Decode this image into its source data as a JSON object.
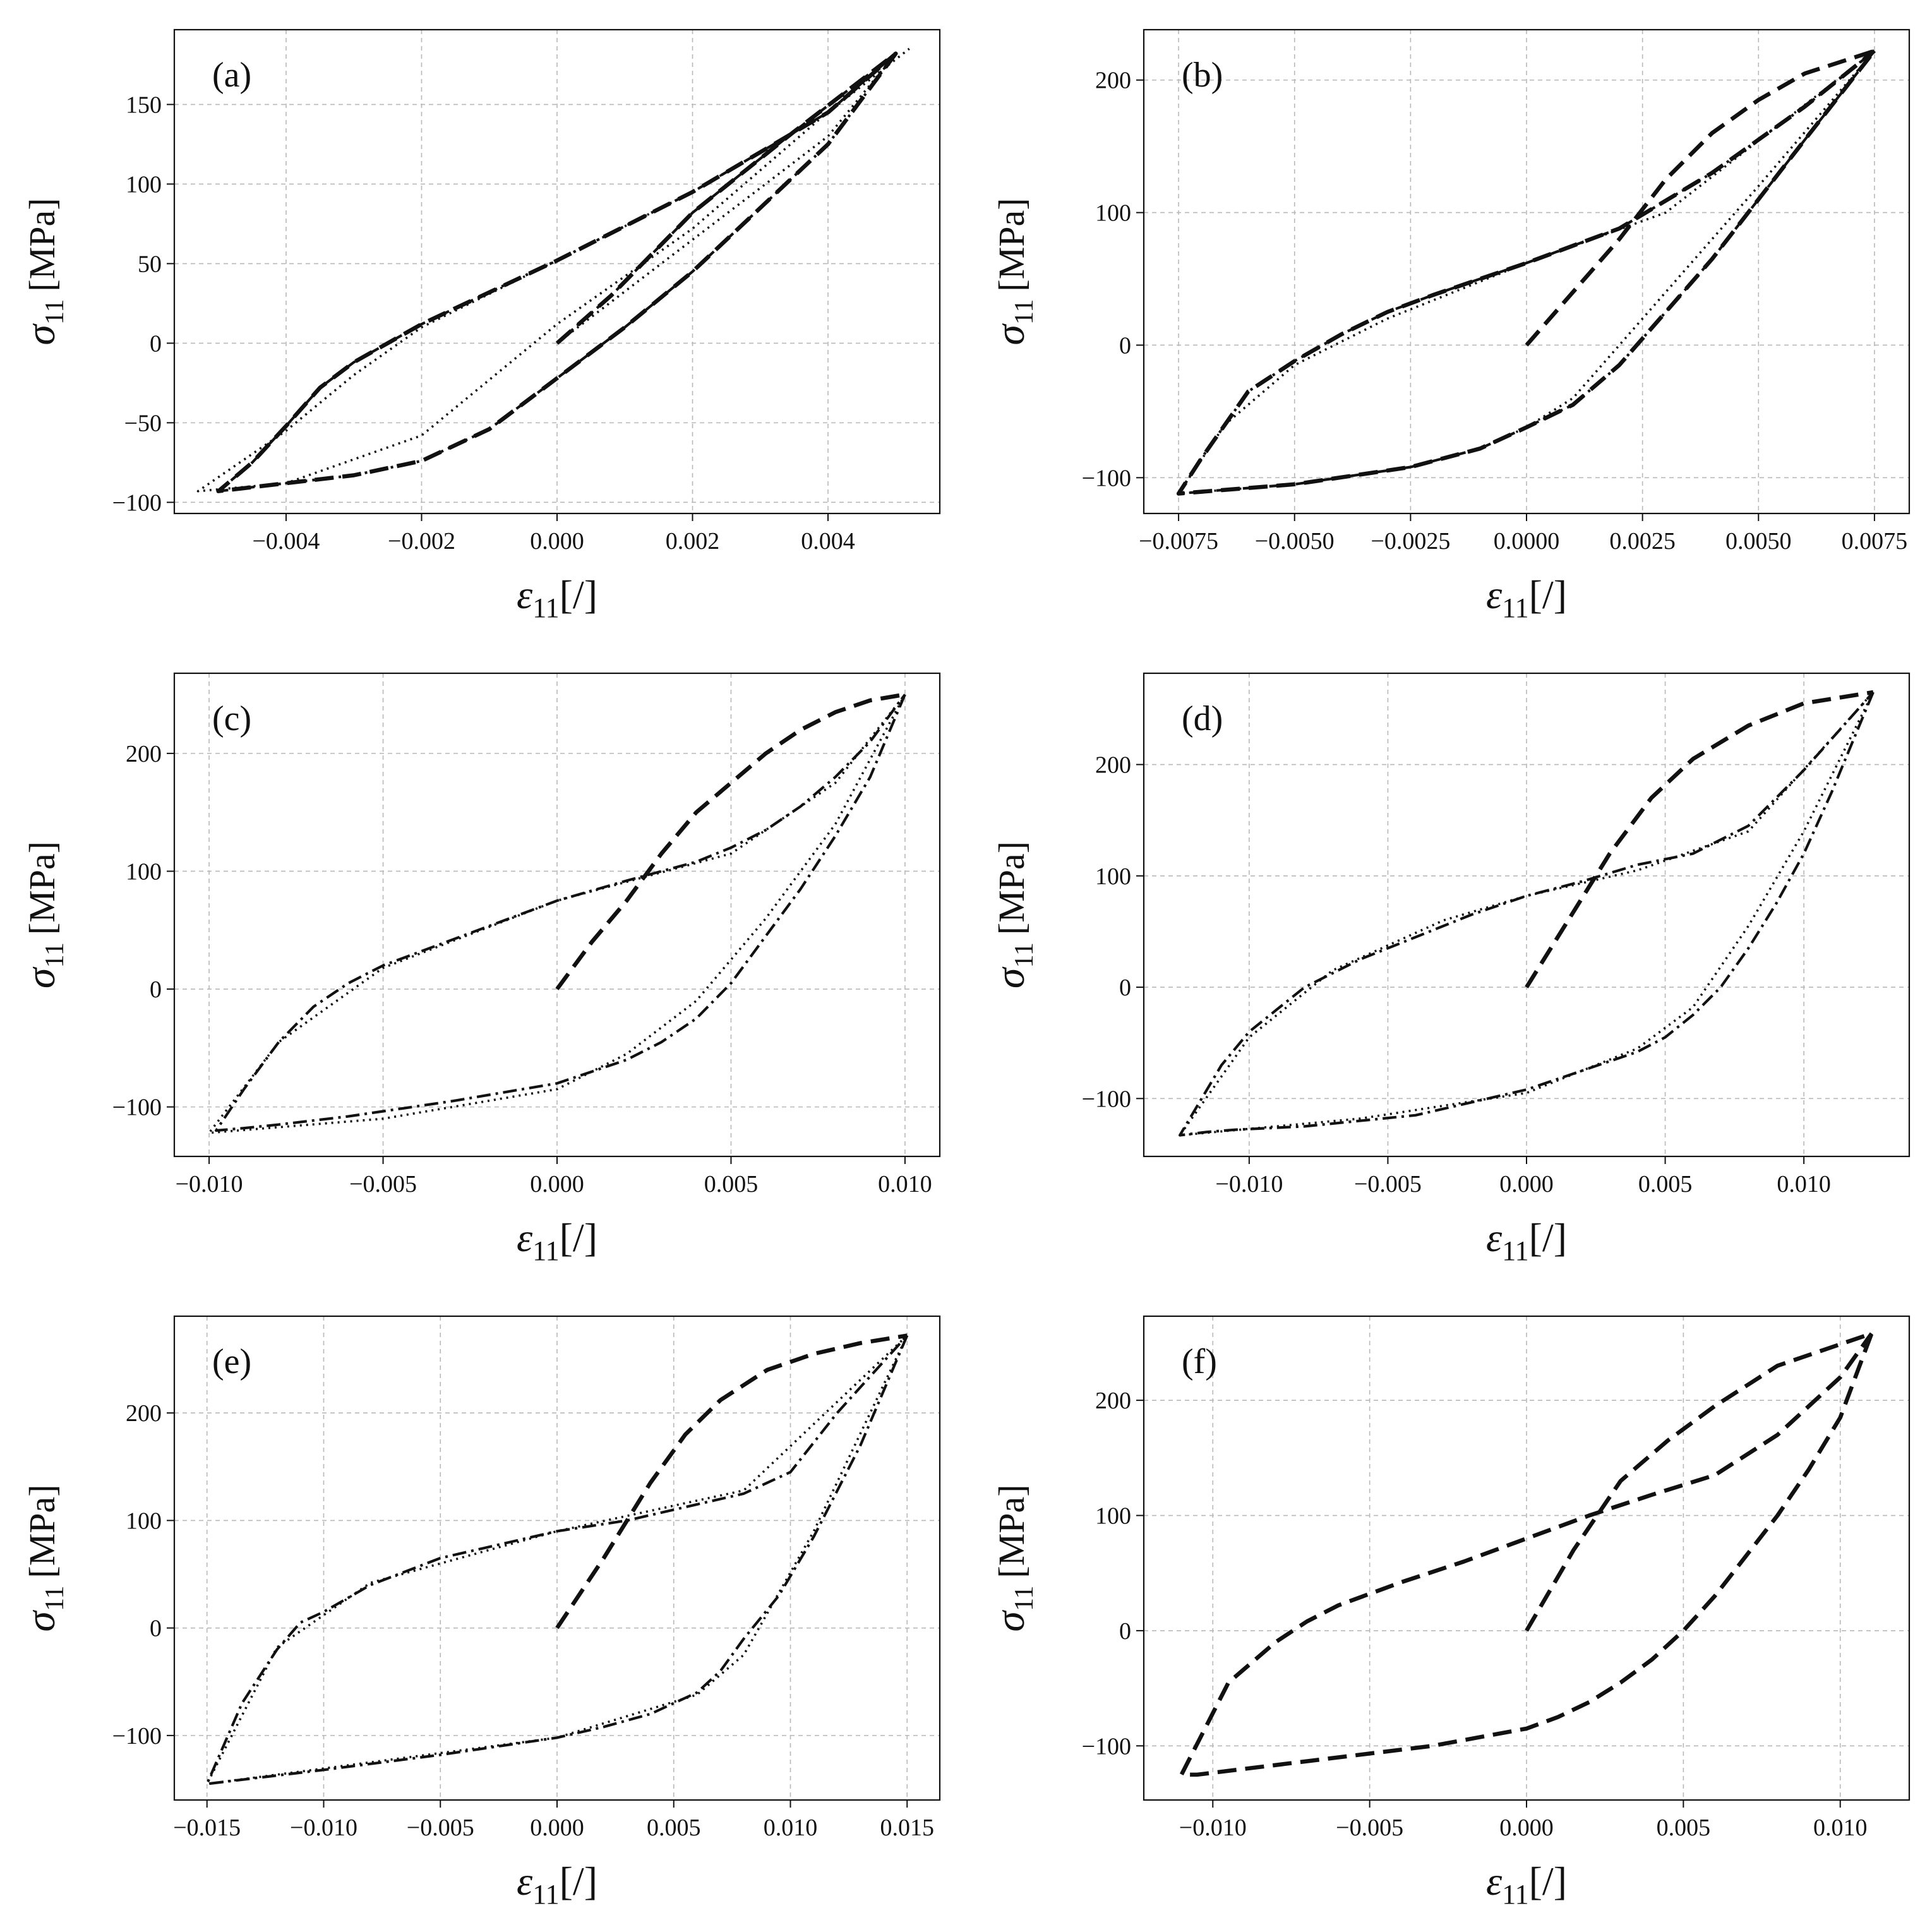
{
  "figure": {
    "x_axis_symbol": "ε",
    "x_axis_subscript": "11",
    "x_axis_unit": "[/]",
    "y_axis_symbol": "σ",
    "y_axis_subscript": "11",
    "y_axis_unit": "[MPa]"
  },
  "chart_data": [
    {
      "type": "line",
      "label": "(a)",
      "xlabel": "ε11[/]",
      "ylabel": "σ11 [MPa]",
      "xlim": [
        -0.00565,
        0.00565
      ],
      "ylim": [
        -107,
        197
      ],
      "xticks": [
        -0.004,
        -0.002,
        0.0,
        0.002,
        0.004
      ],
      "xtick_labels": [
        "−0.004",
        "−0.002",
        "0.000",
        "0.002",
        "0.004"
      ],
      "yticks": [
        -100,
        -50,
        0,
        50,
        100,
        150
      ],
      "ytick_labels": [
        "−100",
        "−50",
        "0",
        "50",
        "100",
        "150"
      ],
      "grid": true,
      "series": [
        {
          "name": "dashed",
          "style": "dashed",
          "x": [
            0,
            0.0008,
            0.002,
            0.0035,
            0.005,
            0.004,
            0.002,
            0.001,
            0,
            -0.001,
            -0.002,
            -0.003,
            -0.004,
            -0.005,
            -0.0045,
            -0.004,
            -0.0035,
            -0.003,
            -0.002,
            0,
            0.002,
            0.004,
            0.005
          ],
          "y": [
            0,
            30,
            82,
            133,
            182,
            125,
            45,
            10,
            -22,
            -54,
            -74,
            -83,
            -88,
            -93,
            -75,
            -52,
            -28,
            -12,
            12,
            52,
            95,
            145,
            182
          ]
        },
        {
          "name": "dash-dot",
          "style": "dashdot",
          "x": [
            0,
            0.0008,
            0.002,
            0.0035,
            0.005,
            0.004,
            0.002,
            0.001,
            0,
            -0.001,
            -0.002,
            -0.003,
            -0.004,
            -0.005,
            -0.0045,
            -0.004,
            -0.0035,
            -0.003,
            -0.002,
            0,
            0.002,
            0.004,
            0.005
          ],
          "y": [
            0,
            30,
            82,
            133,
            182,
            125,
            45,
            10,
            -22,
            -54,
            -74,
            -83,
            -88,
            -93,
            -75,
            -52,
            -28,
            -12,
            12,
            52,
            95,
            145,
            182
          ]
        },
        {
          "name": "dotted",
          "style": "dotted",
          "x": [
            0,
            0.002,
            0.004,
            0.005,
            0.002,
            0,
            -0.002,
            -0.004,
            -0.0053,
            -0.004,
            -0.003,
            -0.002,
            0,
            0.002,
            0.004,
            0.0052
          ],
          "y": [
            0,
            65,
            130,
            182,
            72,
            12,
            -58,
            -88,
            -93,
            -55,
            -20,
            10,
            52,
            95,
            145,
            185
          ]
        }
      ]
    },
    {
      "type": "line",
      "label": "(b)",
      "xlabel": "ε11[/]",
      "ylabel": "σ11 [MPa]",
      "xlim": [
        -0.00825,
        0.00825
      ],
      "ylim": [
        -127,
        238
      ],
      "xticks": [
        -0.0075,
        -0.005,
        -0.0025,
        0.0,
        0.0025,
        0.005,
        0.0075
      ],
      "xtick_labels": [
        "−0.0075",
        "−0.0050",
        "−0.0025",
        "0.0000",
        "0.0025",
        "0.0050",
        "0.0075"
      ],
      "yticks": [
        -100,
        0,
        100,
        200
      ],
      "ytick_labels": [
        "−100",
        "0",
        "100",
        "200"
      ],
      "grid": true,
      "series": [
        {
          "name": "dashed",
          "style": "dashed",
          "x": [
            0,
            0.001,
            0.002,
            0.003,
            0.004,
            0.005,
            0.006,
            0.0075,
            0.006,
            0.005,
            0.004,
            0.003,
            0.002,
            0.001,
            0,
            -0.001,
            -0.0025,
            -0.005,
            -0.0075,
            -0.007,
            -0.006,
            -0.005,
            -0.004,
            -0.003,
            -0.002,
            0,
            0.002,
            0.004,
            0.006,
            0.0075
          ],
          "y": [
            0,
            40,
            80,
            125,
            160,
            185,
            205,
            222,
            155,
            110,
            65,
            25,
            -15,
            -45,
            -62,
            -78,
            -92,
            -105,
            -112,
            -85,
            -35,
            -12,
            8,
            25,
            38,
            62,
            88,
            130,
            180,
            222
          ]
        },
        {
          "name": "dash-dot",
          "style": "dashdot",
          "x": [
            0.0075,
            0.006,
            0.005,
            0.004,
            0.003,
            0.002,
            0.001,
            0,
            -0.001,
            -0.0025,
            -0.005,
            -0.0075,
            -0.007,
            -0.006,
            -0.005,
            -0.004,
            -0.003,
            -0.002,
            0,
            0.002,
            0.004,
            0.006,
            0.0075
          ],
          "y": [
            222,
            155,
            110,
            65,
            25,
            -15,
            -45,
            -62,
            -78,
            -92,
            -105,
            -112,
            -85,
            -35,
            -12,
            8,
            25,
            38,
            62,
            88,
            130,
            180,
            222
          ]
        },
        {
          "name": "dotted",
          "style": "dotted",
          "x": [
            0.0075,
            0.005,
            0.003,
            0.001,
            0,
            -0.001,
            -0.0025,
            -0.005,
            -0.0075,
            -0.0065,
            -0.005,
            -0.003,
            0,
            0.003,
            0.0075
          ],
          "y": [
            222,
            120,
            40,
            -40,
            -62,
            -78,
            -92,
            -105,
            -112,
            -60,
            -15,
            20,
            62,
            100,
            222
          ]
        }
      ]
    },
    {
      "type": "line",
      "label": "(c)",
      "xlabel": "ε11[/]",
      "ylabel": "σ11 [MPa]",
      "xlim": [
        -0.011,
        0.011
      ],
      "ylim": [
        -142,
        268
      ],
      "xticks": [
        -0.01,
        -0.005,
        0.0,
        0.005,
        0.01
      ],
      "xtick_labels": [
        "−0.010",
        "−0.005",
        "0.000",
        "0.005",
        "0.010"
      ],
      "yticks": [
        -100,
        0,
        100,
        200
      ],
      "ytick_labels": [
        "−100",
        "0",
        "100",
        "200"
      ],
      "grid": true,
      "series": [
        {
          "name": "dashed",
          "style": "dashed",
          "x": [
            0,
            0.001,
            0.002,
            0.003,
            0.004,
            0.005,
            0.006,
            0.007,
            0.008,
            0.009,
            0.01
          ],
          "y": [
            0,
            40,
            75,
            115,
            150,
            175,
            200,
            220,
            235,
            245,
            250
          ]
        },
        {
          "name": "dash-dot",
          "style": "dashdot",
          "x": [
            0.01,
            0.009,
            0.008,
            0.007,
            0.006,
            0.005,
            0.004,
            0.003,
            0.002,
            0.001,
            0,
            -0.003,
            -0.006,
            -0.008,
            -0.009,
            -0.0098,
            -0.009,
            -0.008,
            -0.007,
            -0.006,
            -0.005,
            -0.003,
            0,
            0.002,
            0.004,
            0.005,
            0.006,
            0.007,
            0.008,
            0.009,
            0.01
          ],
          "y": [
            250,
            180,
            130,
            85,
            45,
            5,
            -25,
            -45,
            -60,
            -70,
            -80,
            -95,
            -108,
            -115,
            -118,
            -120,
            -85,
            -45,
            -15,
            5,
            20,
            42,
            75,
            92,
            108,
            120,
            135,
            155,
            180,
            210,
            250
          ]
        },
        {
          "name": "dotted",
          "style": "dotted",
          "x": [
            0.01,
            0.008,
            0.006,
            0.004,
            0.002,
            0,
            -0.005,
            -0.01,
            -0.008,
            -0.005,
            0,
            0.005,
            0.008,
            0.01
          ],
          "y": [
            250,
            140,
            60,
            -10,
            -55,
            -85,
            -110,
            -122,
            -45,
            18,
            75,
            115,
            175,
            250
          ]
        }
      ]
    },
    {
      "type": "line",
      "label": "(d)",
      "xlabel": "ε11[/]",
      "ylabel": "σ11 [MPa]",
      "xlim": [
        -0.0138,
        0.0138
      ],
      "ylim": [
        -152,
        282
      ],
      "xticks": [
        -0.01,
        -0.005,
        0.0,
        0.005,
        0.01
      ],
      "xtick_labels": [
        "−0.010",
        "−0.005",
        "0.000",
        "0.005",
        "0.010"
      ],
      "yticks": [
        -100,
        0,
        100,
        200
      ],
      "ytick_labels": [
        "−100",
        "0",
        "100",
        "200"
      ],
      "grid": true,
      "series": [
        {
          "name": "dashed",
          "style": "dashed",
          "x": [
            0,
            0.0015,
            0.003,
            0.0045,
            0.006,
            0.008,
            0.01,
            0.0125
          ],
          "y": [
            0,
            60,
            120,
            170,
            205,
            235,
            255,
            265
          ]
        },
        {
          "name": "dash-dot",
          "style": "dashdot",
          "x": [
            0.0125,
            0.011,
            0.01,
            0.009,
            0.008,
            0.007,
            0.006,
            0.005,
            0.004,
            0.002,
            0,
            -0.004,
            -0.008,
            -0.0105,
            -0.0115,
            -0.0125,
            -0.011,
            -0.01,
            -0.009,
            -0.008,
            -0.006,
            -0.004,
            -0.002,
            0,
            0.002,
            0.004,
            0.006,
            0.008,
            0.01,
            0.0125
          ],
          "y": [
            265,
            175,
            120,
            75,
            35,
            0,
            -25,
            -45,
            -58,
            -75,
            -92,
            -115,
            -125,
            -128,
            -130,
            -133,
            -70,
            -40,
            -20,
            0,
            25,
            45,
            65,
            82,
            95,
            110,
            120,
            145,
            195,
            265
          ]
        },
        {
          "name": "dotted",
          "style": "dotted",
          "x": [
            0.0125,
            0.01,
            0.008,
            0.006,
            0.004,
            0,
            -0.006,
            -0.0125,
            -0.01,
            -0.007,
            -0.003,
            0,
            0.004,
            0.008,
            0.0125
          ],
          "y": [
            265,
            140,
            55,
            -18,
            -55,
            -95,
            -118,
            -133,
            -45,
            15,
            60,
            82,
            105,
            140,
            265
          ]
        }
      ]
    },
    {
      "type": "line",
      "label": "(e)",
      "xlabel": "ε11[/]",
      "ylabel": "σ11 [MPa]",
      "xlim": [
        -0.0164,
        0.0164
      ],
      "ylim": [
        -160,
        290
      ],
      "xticks": [
        -0.015,
        -0.01,
        -0.005,
        0.0,
        0.005,
        0.01,
        0.015
      ],
      "xtick_labels": [
        "−0.015",
        "−0.010",
        "−0.005",
        "0.000",
        "0.005",
        "0.010",
        "0.015"
      ],
      "yticks": [
        -100,
        0,
        100,
        200
      ],
      "ytick_labels": [
        "−100",
        "0",
        "100",
        "200"
      ],
      "grid": true,
      "series": [
        {
          "name": "dashed",
          "style": "dashed",
          "x": [
            0,
            0.002,
            0.004,
            0.0055,
            0.007,
            0.009,
            0.011,
            0.013,
            0.015
          ],
          "y": [
            0,
            65,
            135,
            180,
            212,
            240,
            255,
            265,
            272
          ]
        },
        {
          "name": "dash-dot",
          "style": "dashdot",
          "x": [
            0.015,
            0.013,
            0.011,
            0.0095,
            0.008,
            0.007,
            0.006,
            0.004,
            0.002,
            0,
            -0.005,
            -0.01,
            -0.015,
            -0.0135,
            -0.012,
            -0.011,
            -0.01,
            -0.008,
            -0.005,
            -0.002,
            0,
            0.003,
            0.006,
            0.008,
            0.01,
            0.012,
            0.015
          ],
          "y": [
            272,
            170,
            85,
            30,
            -10,
            -40,
            -60,
            -80,
            -92,
            -102,
            -118,
            -132,
            -145,
            -70,
            -20,
            5,
            15,
            40,
            65,
            80,
            90,
            100,
            115,
            125,
            145,
            200,
            272
          ]
        },
        {
          "name": "dotted",
          "style": "dotted",
          "x": [
            0.015,
            0.011,
            0.008,
            0.006,
            0,
            -0.015,
            -0.012,
            -0.008,
            0,
            0.008,
            0.015
          ],
          "y": [
            272,
            90,
            -25,
            -62,
            -102,
            -145,
            -18,
            42,
            90,
            128,
            272
          ]
        }
      ]
    },
    {
      "type": "line",
      "label": "(f)",
      "xlabel": "ε11[/]",
      "ylabel": "σ11 [MPa]",
      "xlim": [
        -0.0122,
        0.0122
      ],
      "ylim": [
        -147,
        273
      ],
      "xticks": [
        -0.01,
        -0.005,
        0.0,
        0.005,
        0.01
      ],
      "xtick_labels": [
        "−0.010",
        "−0.005",
        "0.000",
        "0.005",
        "0.010"
      ],
      "yticks": [
        -100,
        0,
        100,
        200
      ],
      "ytick_labels": [
        "−100",
        "0",
        "100",
        "200"
      ],
      "grid": true,
      "series": [
        {
          "name": "dashed",
          "style": "dashed",
          "x": [
            0,
            0.0015,
            0.003,
            0.0045,
            0.006,
            0.008,
            0.011,
            0.01,
            0.009,
            0.008,
            0.007,
            0.006,
            0.005,
            0.004,
            0.003,
            0.002,
            0.001,
            0,
            -0.003,
            -0.006,
            -0.0105,
            -0.011,
            -0.0095,
            -0.008,
            -0.007,
            -0.006,
            -0.004,
            -0.002,
            0,
            0.002,
            0.004,
            0.006,
            0.008,
            0.01,
            0.011
          ],
          "y": [
            0,
            70,
            130,
            165,
            195,
            230,
            258,
            185,
            140,
            100,
            65,
            30,
            0,
            -25,
            -45,
            -62,
            -75,
            -85,
            -100,
            -110,
            -125,
            -125,
            -45,
            -10,
            8,
            22,
            42,
            60,
            80,
            100,
            118,
            135,
            170,
            220,
            258
          ]
        }
      ]
    }
  ]
}
